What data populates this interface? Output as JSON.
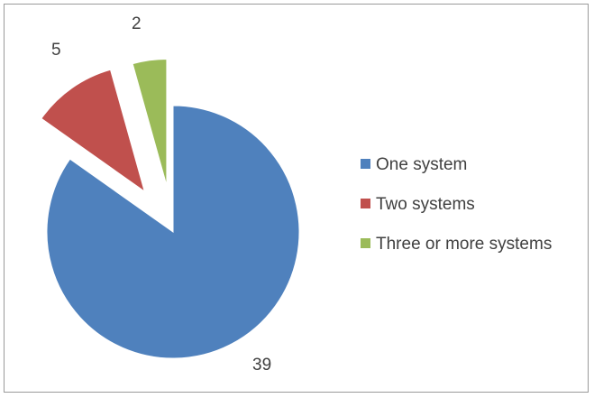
{
  "chart_data": {
    "type": "pie",
    "title": "",
    "categories": [
      "One system",
      "Two systems",
      "Three or more systems"
    ],
    "values": [
      39,
      5,
      2
    ],
    "colors": [
      "#4f81bd",
      "#c0504d",
      "#9bbb59"
    ],
    "exploded": [
      false,
      true,
      true
    ],
    "data_labels": [
      "39",
      "5",
      "2"
    ],
    "legend": {
      "placement": "right",
      "entries": [
        "One system",
        "Two systems",
        "Three or more systems"
      ]
    }
  }
}
